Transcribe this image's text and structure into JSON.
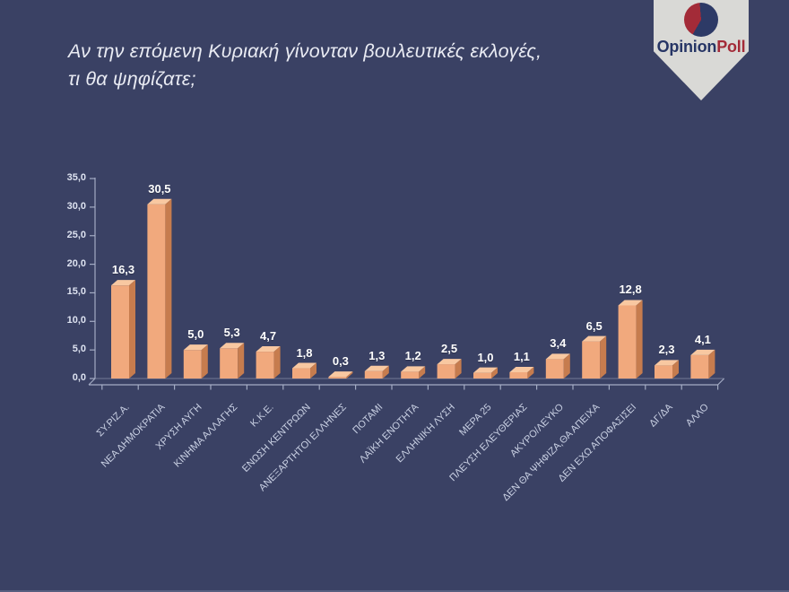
{
  "logo": {
    "brand_primary": "Opinion",
    "brand_secondary": "Poll"
  },
  "title": {
    "line1": "Αν την επόμενη Κυριακή γίνονταν βουλευτικές εκλογές,",
    "line2": "τι θα ψηφίζατε;"
  },
  "chart_data": {
    "type": "bar",
    "title": "Αν την επόμενη Κυριακή γίνονταν βουλευτικές εκλογές, τι θα ψηφίζατε;",
    "categories": [
      "ΣΥ.ΡΙΖ.Α.",
      "ΝΕΑ ΔΗΜΟΚΡΑΤΙΑ",
      "ΧΡΥΣΗ ΑΥΓΗ",
      "ΚΙΝΗΜΑ ΑΛΛΑΓΗΣ",
      "Κ.Κ.Ε.",
      "ΕΝΩΣΗ ΚΕΝΤΡΩΩΝ",
      "ΑΝΕΞΑΡΤΗΤΟΙ ΕΛΛΗΝΕΣ",
      "ΠΟΤΑΜΙ",
      "ΛΑΪΚΗ ΕΝΟΤΗΤΑ",
      "ΕΛΛΗΝΙΚΗ ΛΥΣΗ",
      "ΜΕΡΑ 25",
      "ΠΛΕΥΣΗ ΕΛΕΥΘΕΡΙΑΣ",
      "ΑΚΥΡΟ/ΛΕΥΚΟ",
      "ΔΕΝ ΘΑ ΨΗΦΙΖΑ,ΘΑ ΑΠΕΙΧΑ",
      "ΔΕΝ ΕΧΩ ΑΠΟΦΑΣΙΣΕΙ",
      "ΔΓ/ΔΑ",
      "ΑΛΛΟ"
    ],
    "values": [
      16.3,
      30.5,
      5.0,
      5.3,
      4.7,
      1.8,
      0.3,
      1.3,
      1.2,
      2.5,
      1.0,
      1.1,
      3.4,
      6.5,
      12.8,
      2.3,
      4.1
    ],
    "value_labels": [
      "16,3",
      "30,5",
      "5,0",
      "5,3",
      "4,7",
      "1,8",
      "0,3",
      "1,3",
      "1,2",
      "2,5",
      "1,0",
      "1,1",
      "3,4",
      "6,5",
      "12,8",
      "2,3",
      "4,1"
    ],
    "xlabel": "",
    "ylabel": "",
    "ylim": [
      0,
      35
    ],
    "ytick_step": 5,
    "ytick_labels": [
      "0,0",
      "5,0",
      "10,0",
      "15,0",
      "20,0",
      "25,0",
      "30,0",
      "35,0"
    ],
    "grid": false,
    "legend": null,
    "style": "3d-bar",
    "colors": {
      "background": "#3a4164",
      "axis": "#a9b1c9",
      "bar_front": "#f1a97d",
      "bar_top": "#f8c8a1",
      "bar_side": "#c67c4e",
      "value_label": "#ffffff",
      "ytick_label": "#dde2f0",
      "xtick_label": "#cad1e4",
      "title": "#e9ebf3",
      "logo_bg": "#d9d9d6",
      "logo_navy": "#263565",
      "logo_red": "#a32b38"
    }
  }
}
